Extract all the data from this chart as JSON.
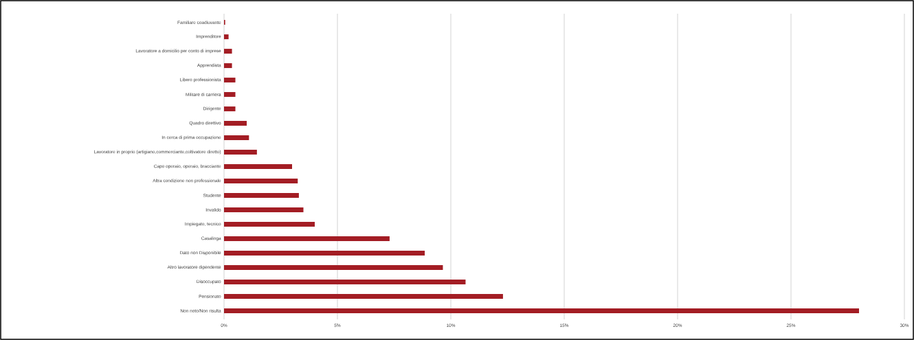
{
  "chart_data": {
    "type": "bar",
    "orientation": "horizontal",
    "categories": [
      "Familiare coadiuvante",
      "Imprenditore",
      "Lavoratore a domicilio per conto di imprese",
      "Apprendista",
      "Libero professionista",
      "Militare di carriera",
      "Dirigente",
      "Quadro direttivo",
      "In cerca di prima occupazione",
      "Lavoratore in proprio (artigiano,commerciante,coltivatore diretto)",
      "Capo operaio, operaio, bracciante",
      "Altra condizione non professionale",
      "Studente",
      "Invalido",
      "Impiegato, tecnico",
      "Casalinga",
      "Dato non Disponibile",
      "Altro lavoratore dipendente",
      "Disoccupato",
      "Pensionato",
      "Non noto/Non risulta"
    ],
    "values": [
      0.05,
      0.2,
      0.35,
      0.35,
      0.5,
      0.5,
      0.5,
      1.0,
      1.1,
      1.45,
      3.0,
      3.25,
      3.3,
      3.5,
      4.0,
      7.3,
      8.85,
      9.65,
      10.65,
      12.3,
      28.0
    ],
    "color": "#a31d24",
    "xlim": [
      0,
      30
    ],
    "xticks": [
      {
        "value": 0,
        "label": "0%"
      },
      {
        "value": 5,
        "label": "5%"
      },
      {
        "value": 10,
        "label": "10%"
      },
      {
        "value": 15,
        "label": "15%"
      },
      {
        "value": 20,
        "label": "20%"
      },
      {
        "value": 25,
        "label": "25%"
      },
      {
        "value": 30,
        "label": "30%"
      }
    ],
    "grid": "x"
  }
}
